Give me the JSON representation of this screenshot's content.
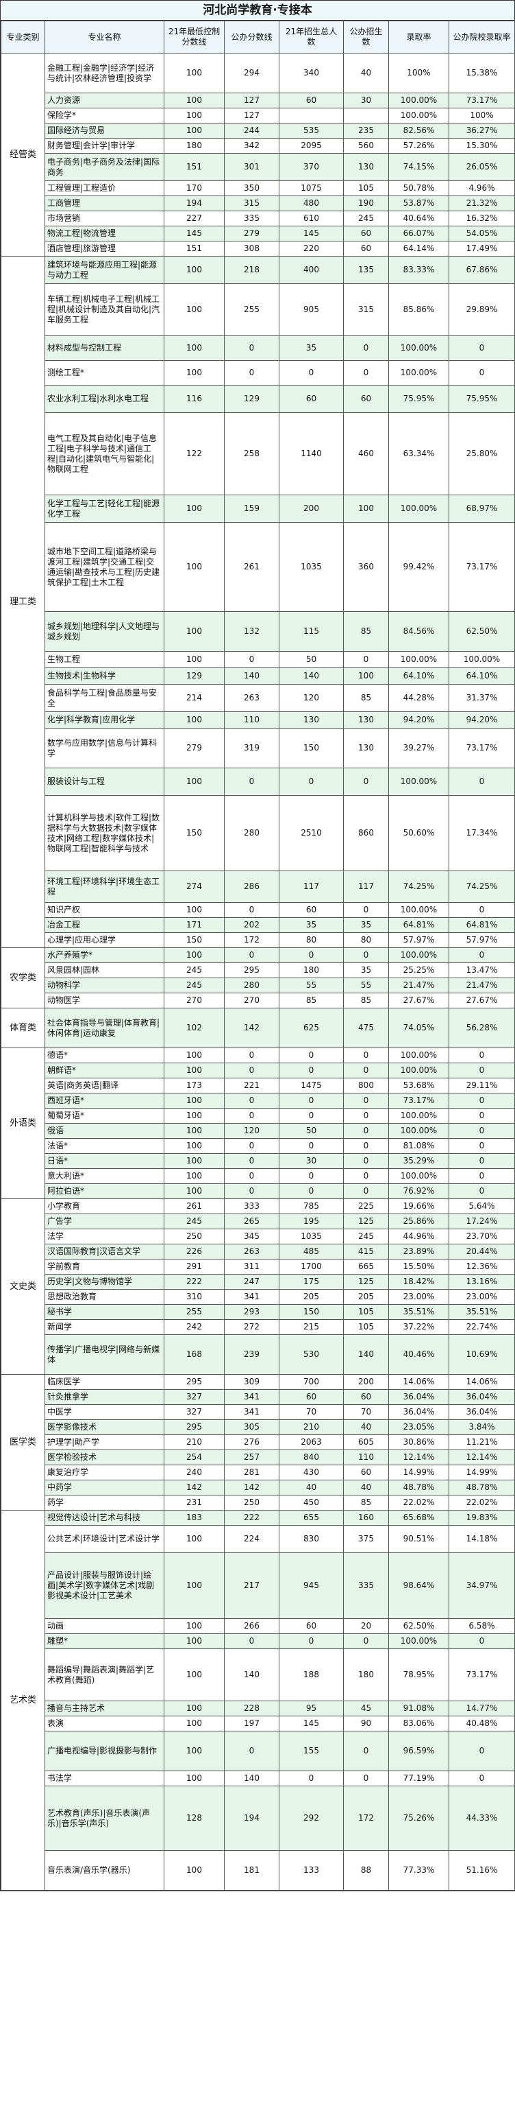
{
  "title": "河北尚学教育·专接本",
  "columns": [
    "专业类别",
    "专业名称",
    "21年最低控制分数线",
    "公办分数线",
    "21年招生总人数",
    "公办招生数",
    "录取率",
    "公办院校录取率"
  ],
  "categories": [
    {
      "name": "经管类",
      "rows": [
        {
          "major": "金融工程|金融学|经济学|经济与统计|农林经济管理|投资学",
          "h": 58,
          "cells": [
            "100",
            "294",
            "340",
            "40",
            "100%",
            "15.38%"
          ]
        },
        {
          "major": "人力资源",
          "h": 22,
          "cells": [
            "100",
            "127",
            "60",
            "30",
            "100.00%",
            "73.17%"
          ]
        },
        {
          "major": "保险学*",
          "h": 22,
          "cells": [
            "100",
            "127",
            "",
            "",
            "100.00%",
            "100%"
          ]
        },
        {
          "major": "国际经济与贸易",
          "h": 22,
          "cells": [
            "100",
            "244",
            "535",
            "235",
            "82.56%",
            "36.27%"
          ]
        },
        {
          "major": "财务管理|会计学|审计学",
          "h": 22,
          "cells": [
            "180",
            "342",
            "2095",
            "560",
            "57.26%",
            "15.30%"
          ]
        },
        {
          "major": "电子商务|电子商务及法律|国际商务",
          "h": 40,
          "cells": [
            "151",
            "301",
            "370",
            "130",
            "74.15%",
            "26.05%"
          ]
        },
        {
          "major": "工程管理|工程造价",
          "h": 22,
          "cells": [
            "170",
            "350",
            "1075",
            "105",
            "50.78%",
            "4.96%"
          ]
        },
        {
          "major": "工商管理",
          "h": 22,
          "cells": [
            "194",
            "315",
            "480",
            "190",
            "53.87%",
            "21.32%"
          ]
        },
        {
          "major": "市场营销",
          "h": 22,
          "cells": [
            "227",
            "335",
            "610",
            "245",
            "40.64%",
            "16.32%"
          ]
        },
        {
          "major": "物流工程|物流管理",
          "h": 22,
          "cells": [
            "145",
            "279",
            "145",
            "60",
            "66.07%",
            "54.05%"
          ]
        },
        {
          "major": "酒店管理|旅游管理",
          "h": 22,
          "cells": [
            "151",
            "308",
            "220",
            "60",
            "64.14%",
            "17.49%"
          ]
        }
      ]
    },
    {
      "name": "理工类",
      "rows": [
        {
          "major": "建筑环境与能源应用工程|能源与动力工程",
          "h": 40,
          "cells": [
            "100",
            "218",
            "400",
            "135",
            "83.33%",
            "67.86%"
          ]
        },
        {
          "major": "车辆工程|机械电子工程|机械工程|机械设计制造及其自动化|汽车服务工程",
          "h": 76,
          "cells": [
            "100",
            "255",
            "905",
            "315",
            "85.86%",
            "29.89%"
          ]
        },
        {
          "major": "材料成型与控制工程",
          "h": 36,
          "cells": [
            "100",
            "0",
            "35",
            "0",
            "100.00%",
            "0"
          ]
        },
        {
          "major": "测绘工程*",
          "h": 36,
          "cells": [
            "100",
            "0",
            "0",
            "0",
            "100.00%",
            "0"
          ]
        },
        {
          "major": "农业水利工程|水利水电工程",
          "h": 40,
          "cells": [
            "116",
            "129",
            "60",
            "60",
            "75.95%",
            "75.95%"
          ]
        },
        {
          "major": "电气工程及其自动化|电子信息工程|电子科学与技术|通信工程|自动化|建筑电气与智能化|物联网工程",
          "h": 120,
          "cells": [
            "122",
            "258",
            "1140",
            "460",
            "63.34%",
            "25.80%"
          ]
        },
        {
          "major": "化学工程与工艺|轻化工程|能源化学工程",
          "h": 40,
          "cells": [
            "100",
            "159",
            "200",
            "100",
            "100.00%",
            "68.97%"
          ]
        },
        {
          "major": "城市地下空间工程|道路桥梁与渡河工程|建筑学|交通工程|交通运输|勘查技术与工程|历史建筑保护工程|土木工程",
          "h": 130,
          "cells": [
            "100",
            "261",
            "1035",
            "360",
            "99.42%",
            "73.17%"
          ]
        },
        {
          "major": "城乡规划|地理科学|人文地理与城乡规划",
          "h": 58,
          "cells": [
            "100",
            "132",
            "115",
            "85",
            "84.56%",
            "62.50%"
          ]
        },
        {
          "major": "生物工程",
          "h": 24,
          "cells": [
            "100",
            "0",
            "50",
            "0",
            "100.00%",
            "100.00%"
          ]
        },
        {
          "major": "生物技术|生物科学",
          "h": 24,
          "cells": [
            "129",
            "140",
            "140",
            "100",
            "64.10%",
            "64.10%"
          ]
        },
        {
          "major": "食品科学与工程|食品质量与安全",
          "h": 40,
          "cells": [
            "214",
            "263",
            "120",
            "85",
            "44.28%",
            "31.37%"
          ]
        },
        {
          "major": "化学|科学教育|应用化学",
          "h": 24,
          "cells": [
            "100",
            "110",
            "130",
            "130",
            "94.20%",
            "94.20%"
          ]
        },
        {
          "major": "数学与应用数学|信息与计算科学",
          "h": 58,
          "cells": [
            "279",
            "319",
            "150",
            "130",
            "39.27%",
            "73.17%"
          ]
        },
        {
          "major": "服装设计与工程",
          "h": 40,
          "cells": [
            "100",
            "0",
            "0",
            "0",
            "100.00%",
            "0"
          ]
        },
        {
          "major": "计算机科学与技术|软件工程|数据科学与大数据技术|数字媒体技术|网络工程|数字媒体技术|物联网工程|智能科学与技术",
          "h": 110,
          "cells": [
            "150",
            "280",
            "2510",
            "860",
            "50.60%",
            "17.34%"
          ]
        },
        {
          "major": "环境工程|环境科学|环境生态工程",
          "h": 46,
          "cells": [
            "274",
            "286",
            "117",
            "117",
            "74.25%",
            "74.25%"
          ]
        },
        {
          "major": "知识产权",
          "h": 22,
          "cells": [
            "100",
            "0",
            "60",
            "0",
            "100.00%",
            "0"
          ]
        },
        {
          "major": "冶金工程",
          "h": 22,
          "cells": [
            "171",
            "202",
            "35",
            "35",
            "64.81%",
            "64.81%"
          ]
        },
        {
          "major": "心理学|应用心理学",
          "h": 22,
          "cells": [
            "150",
            "172",
            "80",
            "80",
            "57.97%",
            "57.97%"
          ]
        }
      ]
    },
    {
      "name": "农学类",
      "rows": [
        {
          "major": "水产养殖学*",
          "h": 22,
          "cells": [
            "100",
            "0",
            "0",
            "0",
            "100.00%",
            "0"
          ]
        },
        {
          "major": "风景园林|园林",
          "h": 22,
          "cells": [
            "245",
            "295",
            "180",
            "35",
            "25.25%",
            "13.47%"
          ]
        },
        {
          "major": "动物科学",
          "h": 22,
          "cells": [
            "245",
            "280",
            "55",
            "55",
            "21.47%",
            "21.47%"
          ]
        },
        {
          "major": "动物医学",
          "h": 22,
          "cells": [
            "270",
            "270",
            "85",
            "85",
            "27.67%",
            "27.67%"
          ]
        }
      ]
    },
    {
      "name": "体育类",
      "rows": [
        {
          "major": "社会体育指导与管理|体育教育|休闲体育|运动康复",
          "h": 58,
          "cells": [
            "102",
            "142",
            "625",
            "475",
            "74.05%",
            "56.28%"
          ]
        }
      ]
    },
    {
      "name": "外语类",
      "rows": [
        {
          "major": "德语*",
          "h": 22,
          "cells": [
            "100",
            "0",
            "0",
            "0",
            "100.00%",
            "0"
          ]
        },
        {
          "major": "朝鲜语*",
          "h": 22,
          "cells": [
            "100",
            "0",
            "0",
            "0",
            "100.00%",
            "0"
          ]
        },
        {
          "major": "英语|商务英语|翻译",
          "h": 22,
          "cells": [
            "173",
            "221",
            "1475",
            "800",
            "53.68%",
            "29.11%"
          ]
        },
        {
          "major": "西班牙语*",
          "h": 22,
          "cells": [
            "100",
            "0",
            "0",
            "0",
            "73.17%",
            "0"
          ]
        },
        {
          "major": "葡萄牙语*",
          "h": 22,
          "cells": [
            "100",
            "0",
            "0",
            "0",
            "100.00%",
            "0"
          ]
        },
        {
          "major": "俄语",
          "h": 22,
          "cells": [
            "100",
            "120",
            "50",
            "0",
            "100.00%",
            "0"
          ]
        },
        {
          "major": "法语*",
          "h": 22,
          "cells": [
            "100",
            "0",
            "0",
            "0",
            "81.08%",
            "0"
          ]
        },
        {
          "major": "日语*",
          "h": 22,
          "cells": [
            "100",
            "0",
            "30",
            "0",
            "35.29%",
            "0"
          ]
        },
        {
          "major": "意大利语*",
          "h": 22,
          "cells": [
            "100",
            "0",
            "0",
            "0",
            "100.00%",
            "0"
          ]
        },
        {
          "major": "阿拉伯语*",
          "h": 22,
          "cells": [
            "100",
            "0",
            "0",
            "0",
            "76.92%",
            "0"
          ]
        }
      ]
    },
    {
      "name": "文史类",
      "rows": [
        {
          "major": "小学教育",
          "h": 22,
          "cells": [
            "261",
            "333",
            "785",
            "225",
            "19.66%",
            "5.64%"
          ]
        },
        {
          "major": "广告学",
          "h": 22,
          "cells": [
            "245",
            "265",
            "195",
            "125",
            "25.86%",
            "17.24%"
          ]
        },
        {
          "major": "法学",
          "h": 22,
          "cells": [
            "250",
            "345",
            "1035",
            "245",
            "44.96%",
            "23.70%"
          ]
        },
        {
          "major": "汉语国际教育|汉语言文学",
          "h": 22,
          "cells": [
            "226",
            "263",
            "485",
            "415",
            "23.89%",
            "20.44%"
          ]
        },
        {
          "major": "学前教育",
          "h": 22,
          "cells": [
            "291",
            "311",
            "1700",
            "665",
            "15.50%",
            "12.36%"
          ]
        },
        {
          "major": "历史学|文物与博物馆学",
          "h": 22,
          "cells": [
            "222",
            "247",
            "175",
            "125",
            "18.42%",
            "13.16%"
          ]
        },
        {
          "major": "思想政治教育",
          "h": 22,
          "cells": [
            "310",
            "341",
            "205",
            "205",
            "23.00%",
            "23.00%"
          ]
        },
        {
          "major": "秘书学",
          "h": 22,
          "cells": [
            "255",
            "293",
            "150",
            "105",
            "35.51%",
            "35.51%"
          ]
        },
        {
          "major": "新闻学",
          "h": 22,
          "cells": [
            "242",
            "272",
            "215",
            "105",
            "37.22%",
            "22.74%"
          ]
        },
        {
          "major": "传播学|广播电视学|网络与新媒体",
          "h": 58,
          "cells": [
            "168",
            "239",
            "530",
            "140",
            "40.46%",
            "10.69%"
          ]
        }
      ]
    },
    {
      "name": "医学类",
      "rows": [
        {
          "major": "临床医学",
          "h": 22,
          "cells": [
            "295",
            "309",
            "700",
            "200",
            "14.06%",
            "14.06%"
          ]
        },
        {
          "major": "针灸推拿学",
          "h": 22,
          "cells": [
            "327",
            "341",
            "60",
            "60",
            "36.04%",
            "36.04%"
          ]
        },
        {
          "major": "中医学",
          "h": 22,
          "cells": [
            "327",
            "341",
            "70",
            "70",
            "36.04%",
            "36.04%"
          ]
        },
        {
          "major": "医学影像技术",
          "h": 22,
          "cells": [
            "295",
            "305",
            "210",
            "40",
            "23.05%",
            "3.84%"
          ]
        },
        {
          "major": "护理学|助产学",
          "h": 22,
          "cells": [
            "210",
            "276",
            "2063",
            "605",
            "30.86%",
            "11.21%"
          ]
        },
        {
          "major": "医学检验技术",
          "h": 22,
          "cells": [
            "254",
            "257",
            "840",
            "110",
            "12.14%",
            "12.14%"
          ]
        },
        {
          "major": "康复治疗学",
          "h": 22,
          "cells": [
            "240",
            "281",
            "430",
            "60",
            "14.99%",
            "14.99%"
          ]
        },
        {
          "major": "中药学",
          "h": 22,
          "cells": [
            "142",
            "142",
            "40",
            "40",
            "48.78%",
            "48.78%"
          ]
        },
        {
          "major": "药学",
          "h": 22,
          "cells": [
            "231",
            "250",
            "450",
            "85",
            "22.02%",
            "22.02%"
          ]
        }
      ]
    },
    {
      "name": "艺术类",
      "rows": [
        {
          "major": "视觉传达设计|艺术与科技",
          "h": 22,
          "cells": [
            "183",
            "222",
            "655",
            "160",
            "65.68%",
            "19.83%"
          ]
        },
        {
          "major": "公共艺术|环境设计|艺术设计学",
          "h": 40,
          "cells": [
            "100",
            "224",
            "830",
            "375",
            "90.51%",
            "14.18%"
          ]
        },
        {
          "major": "产品设计|服装与服饰设计|绘画|美术学|数字媒体艺术|戏剧影视美术设计|工艺美术",
          "h": 96,
          "cells": [
            "100",
            "217",
            "945",
            "335",
            "98.64%",
            "34.97%"
          ]
        },
        {
          "major": "动画",
          "h": 22,
          "cells": [
            "100",
            "266",
            "60",
            "20",
            "62.50%",
            "6.58%"
          ]
        },
        {
          "major": "雕塑*",
          "h": 22,
          "cells": [
            "100",
            "0",
            "0",
            "0",
            "100.00%",
            "0"
          ]
        },
        {
          "major": "舞蹈编导|舞蹈表演|舞蹈学|艺术教育(舞蹈)",
          "h": 76,
          "cells": [
            "100",
            "140",
            "188",
            "180",
            "78.95%",
            "73.17%"
          ]
        },
        {
          "major": "播音与主持艺术",
          "h": 22,
          "cells": [
            "100",
            "228",
            "95",
            "45",
            "91.08%",
            "14.77%"
          ]
        },
        {
          "major": "表演",
          "h": 22,
          "cells": [
            "100",
            "197",
            "145",
            "90",
            "83.06%",
            "40.48%"
          ]
        },
        {
          "major": "广播电视编导|影视摄影与制作",
          "h": 58,
          "cells": [
            "100",
            "0",
            "155",
            "0",
            "96.59%",
            "0"
          ]
        },
        {
          "major": "书法学",
          "h": 22,
          "cells": [
            "100",
            "140",
            "0",
            "0",
            "77.19%",
            "0"
          ]
        },
        {
          "major": "艺术教育(声乐)|音乐表演(声乐)|音乐学(声乐)",
          "h": 94,
          "cells": [
            "128",
            "194",
            "292",
            "172",
            "75.26%",
            "44.33%"
          ]
        },
        {
          "major": "音乐表演/音乐学(器乐)",
          "h": 58,
          "cells": [
            "100",
            "181",
            "133",
            "88",
            "77.33%",
            "51.16%"
          ]
        }
      ]
    }
  ]
}
